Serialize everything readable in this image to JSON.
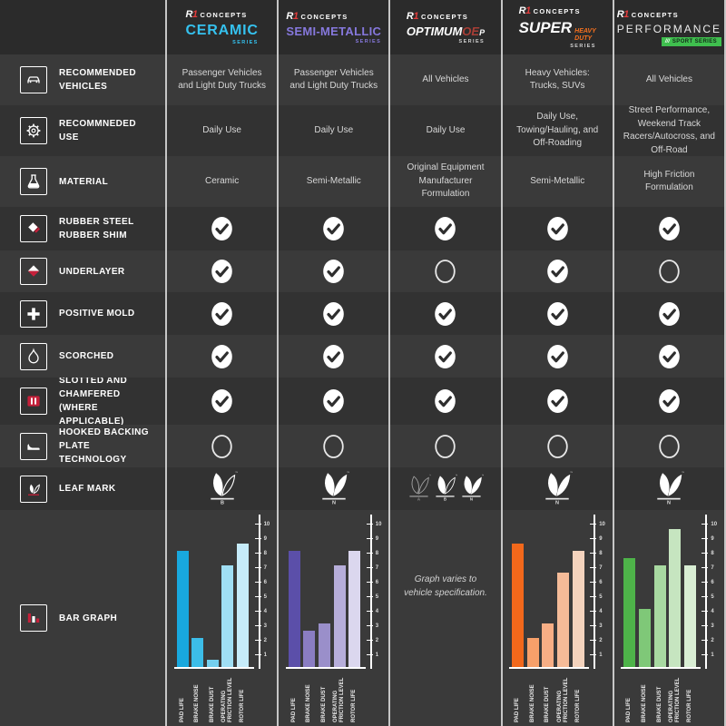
{
  "brand": {
    "logo_r": "R",
    "logo_1": "1",
    "name": "CONCEPTS"
  },
  "columns": [
    {
      "id": "ceramic",
      "header": {
        "title_parts": [
          {
            "text": "CERAMIC",
            "color": "#35c2ef"
          }
        ],
        "subtitle": "SERIES",
        "subtitle_color": "#35c2ef"
      }
    },
    {
      "id": "semi_metallic",
      "header": {
        "title_parts": [
          {
            "text": "SEMI-METALLIC",
            "color": "#8678dd"
          }
        ],
        "subtitle": "SERIES",
        "subtitle_color": "#8678dd"
      }
    },
    {
      "id": "optimum",
      "header": {
        "title_parts": [
          {
            "text": "OPTIMUM",
            "color": "#ffffff",
            "italic": true
          },
          {
            "text": "OE",
            "color": "#a93e36",
            "italic": true
          },
          {
            "text": "P",
            "color": "#ffffff",
            "italic": true,
            "small": true
          }
        ],
        "subtitle": "SERIES",
        "subtitle_color": "#cfcfcf"
      }
    },
    {
      "id": "super_hd",
      "header": {
        "title_parts": [
          {
            "text": "SUPER",
            "color": "#ffffff",
            "italic": true
          },
          {
            "text": "HEAVY DUTY",
            "color": "#f4701f",
            "italic": true,
            "stack": true
          }
        ],
        "subtitle": "SERIES",
        "subtitle_color": "#cfcfcf"
      }
    },
    {
      "id": "performance",
      "header": {
        "title_parts": [
          {
            "text": "PERFORMANCE",
            "color": "#ececec",
            "spaced": true
          }
        ],
        "badge": {
          "slashes": "///",
          "text": "SPORT SERIES",
          "bg": "#3fbf4e",
          "text_color": "#14281a"
        }
      }
    }
  ],
  "rows": [
    {
      "id": "recommended-vehicles",
      "label": "RECOMMENDED VEHICLES",
      "icon": "car-icon",
      "type": "text",
      "values": [
        "Passenger Vehicles and Light Duty Trucks",
        "Passenger Vehicles and Light Duty Trucks",
        "All Vehicles",
        "Heavy Vehicles: Trucks, SUVs",
        "All Vehicles"
      ]
    },
    {
      "id": "recommended-use",
      "label": "RECOMMNEDED USE",
      "icon": "gear-icon",
      "type": "text",
      "values": [
        "Daily Use",
        "Daily Use",
        "Daily Use",
        "Daily Use, Towing/Hauling, and Off-Roading",
        "Street Performance, Weekend Track Racers/Autocross, and Off-Road"
      ]
    },
    {
      "id": "material",
      "label": "MATERIAL",
      "icon": "flask-icon",
      "type": "text",
      "values": [
        "Ceramic",
        "Semi-Metallic",
        "Original Equipment Manufacturer Formulation",
        "Semi-Metallic",
        "High Friction Formulation"
      ]
    },
    {
      "id": "rubber-steel-rubber-shim",
      "label": "RUBBER STEEL RUBBER SHIM",
      "icon": "shim-icon",
      "type": "bool",
      "values": [
        "check",
        "check",
        "check",
        "check",
        "check"
      ]
    },
    {
      "id": "underlayer",
      "label": "UNDERLAYER",
      "icon": "underlayer-icon",
      "type": "bool",
      "values": [
        "check",
        "check",
        "circle",
        "check",
        "circle"
      ]
    },
    {
      "id": "positive-mold",
      "label": "POSITIVE MOLD",
      "icon": "positive-mold-icon",
      "type": "bool",
      "values": [
        "check",
        "check",
        "check",
        "check",
        "check"
      ]
    },
    {
      "id": "scorched",
      "label": "SCORCHED",
      "icon": "flame-icon",
      "type": "bool",
      "values": [
        "check",
        "check",
        "check",
        "check",
        "check"
      ]
    },
    {
      "id": "slotted-chamfered",
      "label": "SLOTTED AND CHAMFERED (WHERE APPLICABLE)",
      "icon": "slotted-icon",
      "type": "bool",
      "values": [
        "check",
        "check",
        "check",
        "check",
        "check"
      ]
    },
    {
      "id": "hooked-backing-plate",
      "label": "HOOKED BACKING PLATE TECHNOLOGY",
      "icon": "backing-plate-icon",
      "type": "bool",
      "values": [
        "circle",
        "circle",
        "circle",
        "circle",
        "circle"
      ]
    },
    {
      "id": "leaf-mark",
      "label": "LEAF MARK",
      "icon": "leaf-icon",
      "type": "leaf",
      "values": [
        [
          {
            "letter": "B",
            "variant": "partial"
          }
        ],
        [
          {
            "letter": "N",
            "variant": "solid"
          }
        ],
        [
          {
            "letter": "A",
            "variant": "outline"
          },
          {
            "letter": "B",
            "variant": "partial"
          },
          {
            "letter": "N",
            "variant": "solid"
          }
        ],
        [
          {
            "letter": "N",
            "variant": "solid"
          }
        ],
        [
          {
            "letter": "N",
            "variant": "solid"
          }
        ]
      ]
    },
    {
      "id": "bar-graph",
      "label": "BAR GRAPH",
      "icon": "bar-graph-icon",
      "type": "chart"
    }
  ],
  "chart_data": [
    {
      "type": "bar",
      "series": "CERAMIC SERIES",
      "categories": [
        "PAD LIFE",
        "BRAKE NOISE",
        "BRAKE DUST",
        "OPERATING FRICTION LEVEL",
        "ROTOR LIFE"
      ],
      "values": [
        8,
        2,
        0.5,
        7,
        8.5
      ],
      "colors": [
        "#18a8de",
        "#3cbde8",
        "#74cfee",
        "#a0dff4",
        "#c6ecfa"
      ],
      "ylim": [
        0,
        10
      ],
      "yticks": [
        1,
        2,
        3,
        4,
        5,
        6,
        7,
        8,
        9,
        10
      ],
      "axis_side": "right"
    },
    {
      "type": "bar",
      "series": "SEMI-METALLIC SERIES",
      "categories": [
        "PAD LIFE",
        "BRAKE NOISE",
        "BRAKE DUST",
        "OPERATING FRICTION LEVEL",
        "ROTOR LIFE"
      ],
      "values": [
        8,
        2.5,
        3,
        7,
        8
      ],
      "colors": [
        "#5b4fa9",
        "#8a7dc2",
        "#9a8fca",
        "#b7aeda",
        "#dbd7ee"
      ],
      "ylim": [
        0,
        10
      ],
      "yticks": [
        1,
        2,
        3,
        4,
        5,
        6,
        7,
        8,
        9,
        10
      ],
      "axis_side": "right"
    },
    {
      "type": "note",
      "series": "OPTIMUM OEP SERIES",
      "text": "Graph varies to vehicle specification."
    },
    {
      "type": "bar",
      "series": "SUPER HEAVY DUTY SERIES",
      "categories": [
        "PAD LIFE",
        "BRAKE NOISE",
        "BRAKE DUST",
        "OPERATING FRICTION LEVEL",
        "ROTOR LIFE"
      ],
      "values": [
        8.5,
        2,
        3,
        6.5,
        8
      ],
      "colors": [
        "#f2681b",
        "#f7a06a",
        "#f7ae85",
        "#f5bb98",
        "#f4d3bd"
      ],
      "ylim": [
        0,
        10
      ],
      "yticks": [
        1,
        2,
        3,
        4,
        5,
        6,
        7,
        8,
        9,
        10
      ],
      "axis_side": "right"
    },
    {
      "type": "bar",
      "series": "PERFORMANCE SPORT SERIES",
      "categories": [
        "PAD LIFE",
        "BRAKE NOISE",
        "BRAKE DUST",
        "OPERATING FRICTION LEVEL",
        "ROTOR LIFE"
      ],
      "values": [
        7.5,
        4,
        7,
        9.5,
        7
      ],
      "colors": [
        "#4eb349",
        "#7fc878",
        "#a8d9a1",
        "#c6e5c0",
        "#d9eed4"
      ],
      "ylim": [
        0,
        10
      ],
      "yticks": [
        1,
        2,
        3,
        4,
        5,
        6,
        7,
        8,
        9,
        10
      ],
      "axis_side": "right"
    }
  ]
}
